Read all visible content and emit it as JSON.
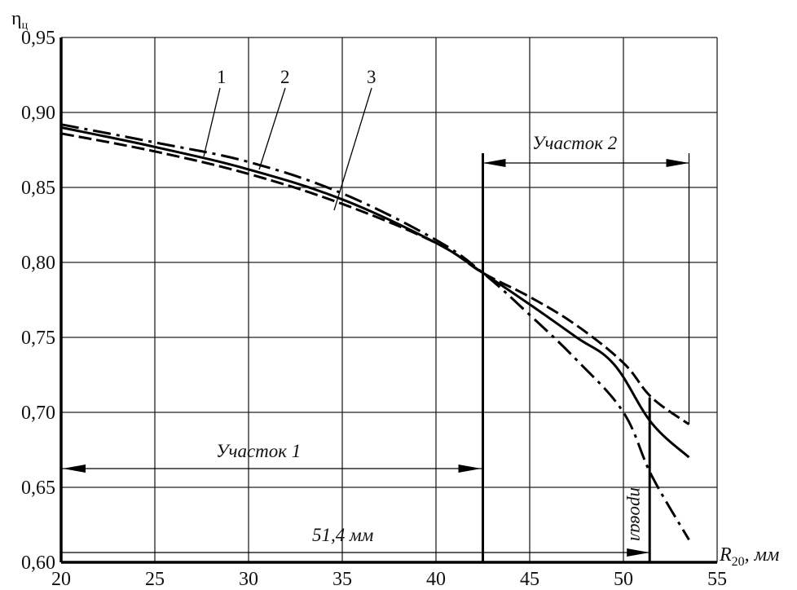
{
  "chart_data": {
    "type": "line",
    "ylabel": "η",
    "ylabel_sub": "ц",
    "xlabel": "R",
    "xlabel_sub": "20",
    "xlabel_unit": ", мм",
    "xlim": [
      20,
      55
    ],
    "ylim": [
      0.6,
      0.95
    ],
    "x_ticks": [
      20,
      25,
      30,
      35,
      40,
      45,
      50,
      55
    ],
    "x_tick_labels": [
      "20",
      "25",
      "30",
      "35",
      "40",
      "45",
      "50",
      "55"
    ],
    "y_ticks": [
      0.6,
      0.65,
      0.7,
      0.75,
      0.8,
      0.85,
      0.9,
      0.95
    ],
    "y_tick_labels": [
      "0,60",
      "0,65",
      "0,70",
      "0,75",
      "0,80",
      "0,85",
      "0,90",
      "0,95"
    ],
    "grid": true,
    "series": [
      {
        "name": "1",
        "line_style": "dash-dot",
        "x": [
          20,
          25,
          30,
          35,
          40,
          42.5,
          45,
          47.5,
          50,
          51.5,
          53.5
        ],
        "y": [
          0.892,
          0.88,
          0.867,
          0.846,
          0.815,
          0.793,
          0.765,
          0.735,
          0.7,
          0.658,
          0.615
        ]
      },
      {
        "name": "2",
        "line_style": "dashed",
        "x": [
          20,
          25,
          30,
          35,
          40,
          42.5,
          45,
          47.5,
          50,
          51.5,
          53.5
        ],
        "y": [
          0.886,
          0.874,
          0.859,
          0.839,
          0.813,
          0.793,
          0.777,
          0.758,
          0.733,
          0.71,
          0.692
        ]
      },
      {
        "name": "3",
        "line_style": "solid",
        "x": [
          20,
          25,
          30,
          35,
          40,
          42.5,
          45,
          47.5,
          49.5,
          51.5,
          53.5
        ],
        "y": [
          0.89,
          0.877,
          0.862,
          0.842,
          0.813,
          0.793,
          0.772,
          0.75,
          0.732,
          0.693,
          0.67
        ]
      }
    ],
    "annotations": {
      "section1_label": "Участок 1",
      "section1_range": [
        20,
        42.5
      ],
      "section2_label": "Участок 2",
      "section2_range": [
        42.5,
        53.5
      ],
      "boundary_x": 42.5,
      "dip_x": 51.4,
      "distance_label": "51,4 мм",
      "dip_label": "провал"
    }
  }
}
